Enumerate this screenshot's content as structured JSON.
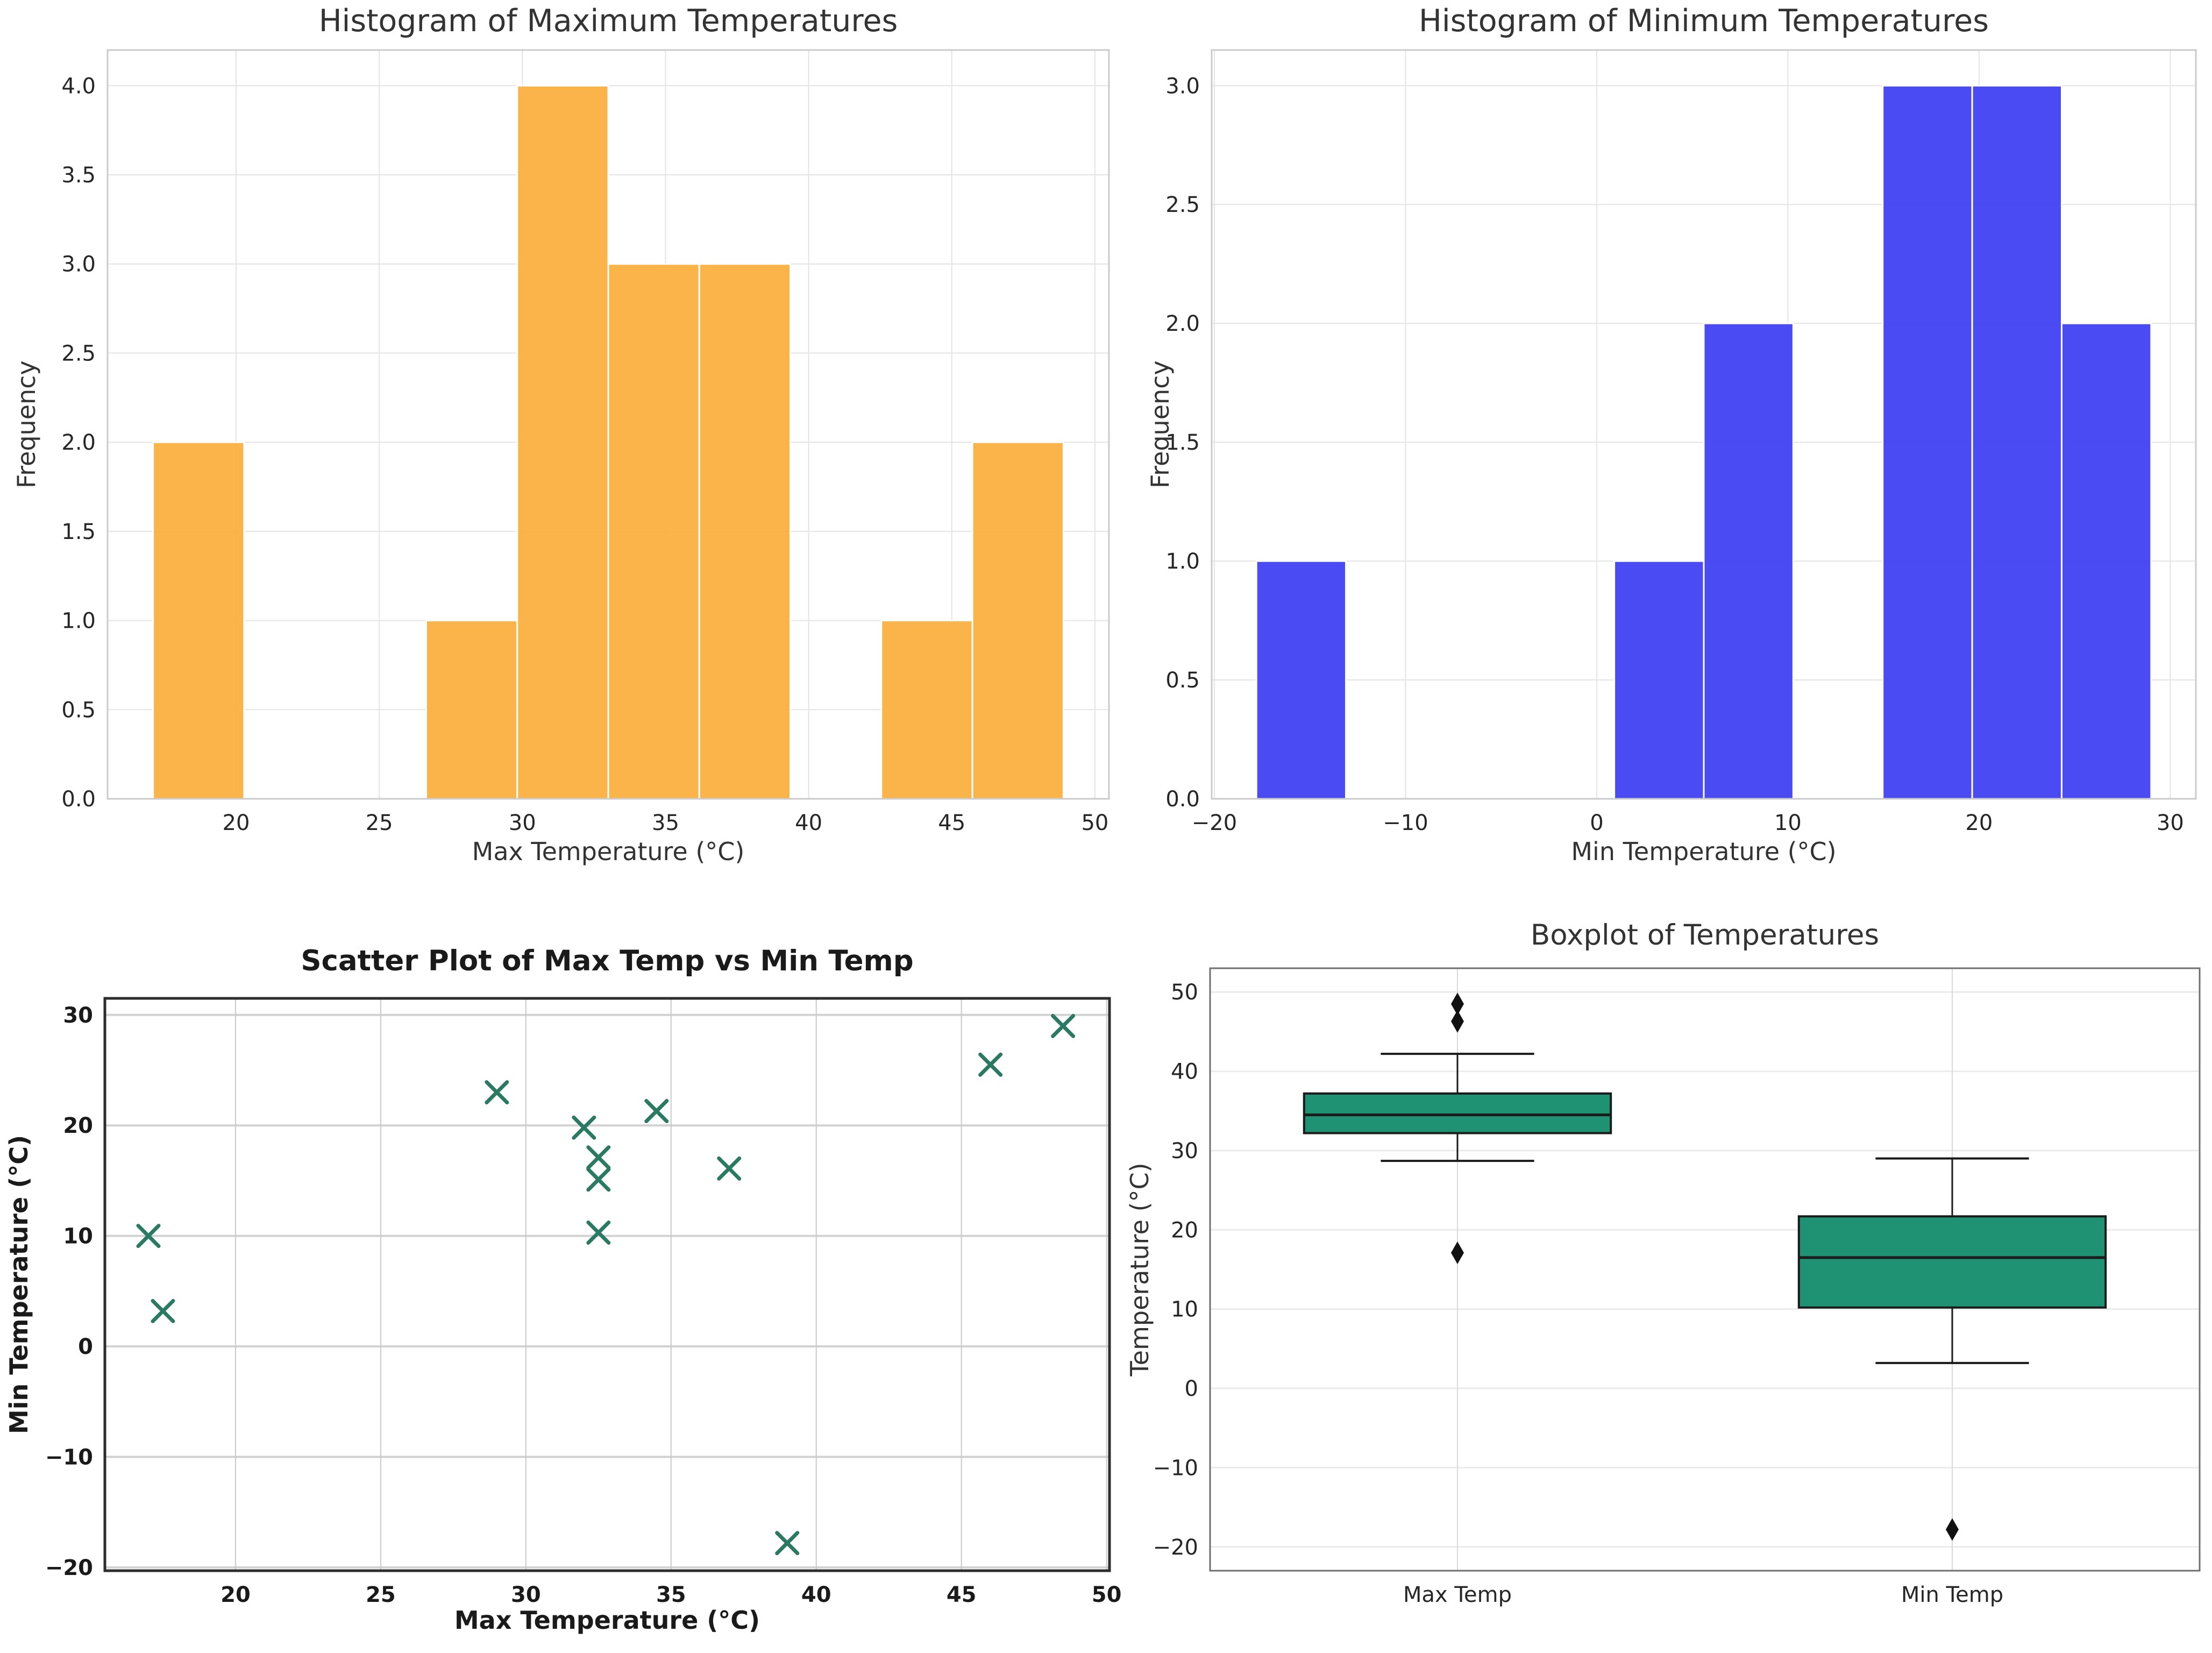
{
  "figure": {
    "background": "#ffffff",
    "titles": {
      "hist_max": "Histogram of Maximum Temperatures",
      "hist_min": "Histogram of Minimum Temperatures",
      "scatter": "Scatter Plot of Max Temp vs Min Temp",
      "box": "Boxplot of Temperatures"
    }
  },
  "colors": {
    "hist_max_bar": "#FBB040",
    "hist_min_bar": "#4141F2",
    "scatter_marker": "#2A7963",
    "box_fill": "#1F9273",
    "box_edge": "#1a1a1a",
    "outlier": "#111111",
    "grid_light": "#e4e4e4",
    "grid_scatter_h": "#d2d2d2",
    "grid_scatter_v": "#c9c9c9",
    "grid_box": "#ebebeb",
    "grid_box_v": "#d9d9d9",
    "spine_hist": "#cbcbcb",
    "spine_scatter": "#2e2e2e",
    "spine_box": "#6f6f6f"
  },
  "chart_data": [
    {
      "id": "hist_max",
      "type": "bar",
      "title": "Histogram of Maximum Temperatures",
      "xlabel": "Max Temperature (°C)",
      "ylabel": "Frequency",
      "bin_edges": [
        17.1,
        20.28,
        23.46,
        26.64,
        29.82,
        33.0,
        36.18,
        39.36,
        42.54,
        45.72,
        48.9
      ],
      "counts": [
        2,
        0,
        0,
        1,
        4,
        3,
        3,
        0,
        1,
        2
      ],
      "xlim": [
        15.51,
        50.49
      ],
      "ylim": [
        0,
        4.2
      ],
      "xticks": [
        20,
        25,
        30,
        35,
        40,
        45,
        50
      ],
      "yticks": [
        0.0,
        0.5,
        1.0,
        1.5,
        2.0,
        2.5,
        3.0,
        3.5,
        4.0
      ],
      "ytick_decimals": 1,
      "grid": true,
      "legend": "none"
    },
    {
      "id": "hist_min",
      "type": "bar",
      "title": "Histogram of Minimum Temperatures",
      "xlabel": "Min Temperature (°C)",
      "ylabel": "Frequency",
      "bin_edges": [
        -17.8,
        -13.12,
        -8.44,
        -3.76,
        0.92,
        5.6,
        10.28,
        14.96,
        19.64,
        24.32,
        29.0
      ],
      "counts": [
        1,
        0,
        0,
        0,
        1,
        2,
        0,
        3,
        3,
        2
      ],
      "xlim": [
        -20.14,
        31.34
      ],
      "ylim": [
        0,
        3.15
      ],
      "xticks": [
        -20,
        -10,
        0,
        10,
        20,
        30
      ],
      "yticks": [
        0.0,
        0.5,
        1.0,
        1.5,
        2.0,
        2.5,
        3.0
      ],
      "ytick_decimals": 1,
      "grid": true,
      "legend": "none"
    },
    {
      "id": "scatter",
      "type": "scatter",
      "title": "Scatter Plot of Max Temp vs Min Temp",
      "xlabel": "Max Temperature (°C)",
      "ylabel": "Min Temperature (°C)",
      "points": [
        [
          17.0,
          10.0
        ],
        [
          17.5,
          3.2
        ],
        [
          29.0,
          23.0
        ],
        [
          32.0,
          19.8
        ],
        [
          32.5,
          17.1
        ],
        [
          32.5,
          15.1
        ],
        [
          32.5,
          10.3
        ],
        [
          34.5,
          21.3
        ],
        [
          37.0,
          16.1
        ],
        [
          39.0,
          -17.8
        ],
        [
          46.0,
          25.5
        ],
        [
          48.5,
          29.0
        ]
      ],
      "xlim": [
        15.5,
        50.1
      ],
      "ylim": [
        -20.3,
        31.5
      ],
      "xticks": [
        20,
        25,
        30,
        35,
        40,
        45,
        50
      ],
      "yticks": [
        -20,
        -10,
        0,
        10,
        20,
        30
      ],
      "grid": true,
      "legend": "none"
    },
    {
      "id": "box",
      "type": "box",
      "title": "Boxplot of Temperatures",
      "xlabel": "",
      "ylabel": "Temperature (°C)",
      "categories": [
        "Max Temp",
        "Min Temp"
      ],
      "boxes": [
        {
          "label": "Max Temp",
          "whisker_low": 28.7,
          "q1": 32.2,
          "median": 34.5,
          "q3": 37.2,
          "whisker_high": 42.2,
          "outliers": [
            48.5,
            46.3,
            17.1
          ]
        },
        {
          "label": "Min Temp",
          "whisker_low": 3.2,
          "q1": 10.2,
          "median": 16.5,
          "q3": 21.7,
          "whisker_high": 29.0,
          "outliers": [
            -17.8
          ]
        }
      ],
      "ylim": [
        -23,
        53
      ],
      "yticks": [
        -20,
        -10,
        0,
        10,
        20,
        30,
        40,
        50
      ],
      "grid": true,
      "legend": "none"
    }
  ]
}
